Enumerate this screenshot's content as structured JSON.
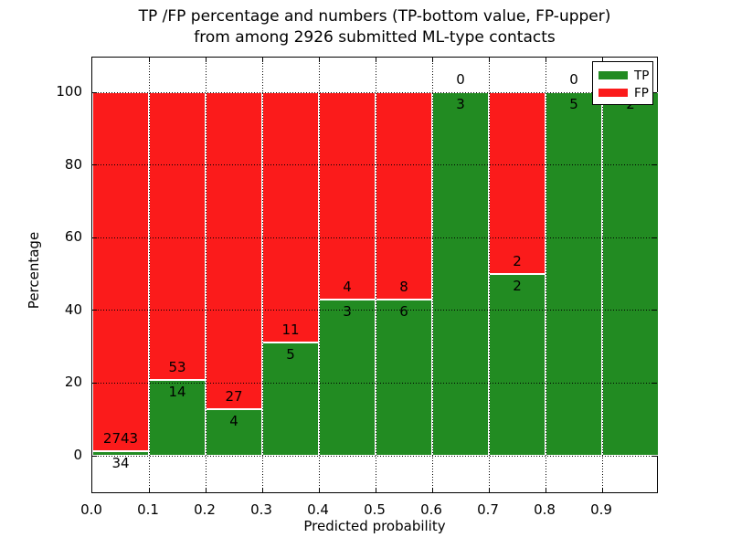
{
  "figure": {
    "title_lines": [
      "TP /FP percentage and numbers (TP-bottom value, FP-upper)",
      "from among 2926 submitted ML-type contacts"
    ]
  },
  "legend": {
    "items": [
      {
        "label": "TP",
        "color": "#228b22"
      },
      {
        "label": "FP",
        "color": "#fb1b1b"
      }
    ]
  },
  "chart_data": {
    "type": "bar",
    "stacked": true,
    "normalized": "percent",
    "title": "TP /FP percentage and numbers (TP-bottom value, FP-upper) from among 2926 submitted ML-type contacts",
    "xlabel": "Predicted probability",
    "ylabel": "Percentage",
    "total_contacts": 2926,
    "x_bin_edges": [
      0.0,
      0.1,
      0.2,
      0.3,
      0.4,
      0.5,
      0.6,
      0.7,
      0.8,
      0.9,
      1.0
    ],
    "x_tick_labels": [
      "0.0",
      "0.1",
      "0.2",
      "0.3",
      "0.4",
      "0.5",
      "0.6",
      "0.7",
      "0.8",
      "0.9"
    ],
    "y_ticks": [
      0,
      20,
      40,
      60,
      80,
      100
    ],
    "ylim": [
      -11,
      109.5
    ],
    "series": [
      {
        "name": "TP",
        "color": "#228b22",
        "values": [
          34,
          14,
          4,
          5,
          3,
          6,
          3,
          2,
          5,
          2
        ]
      },
      {
        "name": "FP",
        "color": "#fb1b1b",
        "values": [
          2743,
          53,
          27,
          11,
          4,
          8,
          0,
          2,
          0,
          0
        ]
      }
    ],
    "tp_percent_per_bin": [
      1.2,
      20.9,
      12.9,
      31.3,
      42.9,
      42.9,
      100.0,
      50.0,
      100.0,
      100.0
    ],
    "bar_edge_color": "#ffffff",
    "grid": "dotted",
    "legend_position": "upper right"
  }
}
